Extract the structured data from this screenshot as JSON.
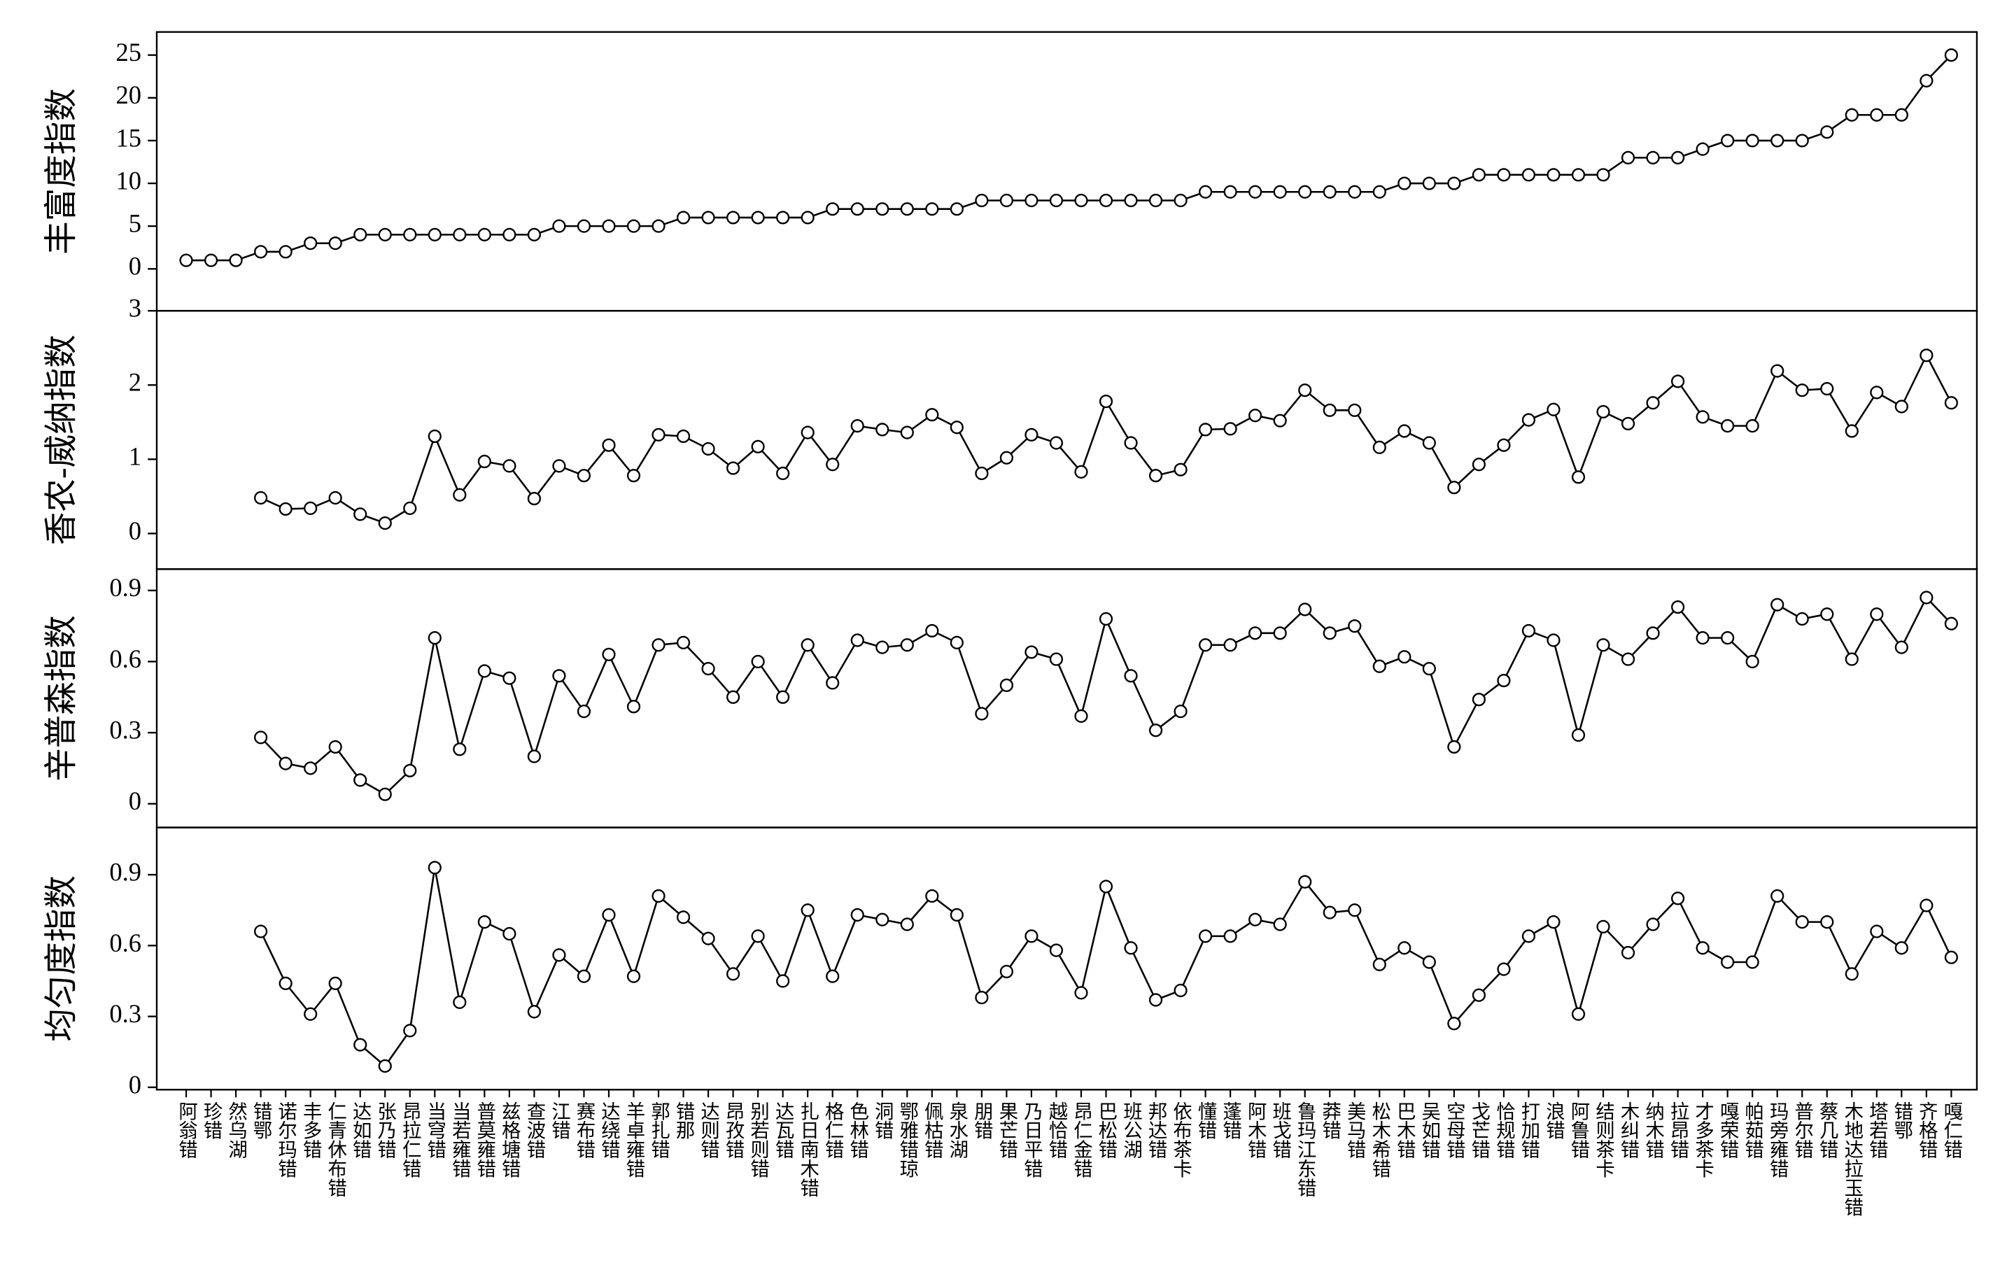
{
  "chart_data": [
    {
      "type": "line",
      "ylabel": "丰富度指数",
      "ylim": [
        -4.9,
        27.7
      ],
      "yticks": [
        0,
        5,
        10,
        15,
        20,
        25
      ],
      "values": [
        1,
        1,
        1,
        2,
        2,
        3,
        3,
        4,
        4,
        4,
        4,
        4,
        4,
        4,
        4,
        5,
        5,
        5,
        5,
        5,
        6,
        6,
        6,
        6,
        6,
        6,
        7,
        7,
        7,
        7,
        7,
        7,
        8,
        8,
        8,
        8,
        8,
        8,
        8,
        8,
        8,
        9,
        9,
        9,
        9,
        9,
        9,
        9,
        9,
        10,
        10,
        10,
        11,
        11,
        11,
        11,
        11,
        11,
        13,
        13,
        13,
        14,
        15,
        15,
        15,
        15,
        16,
        18,
        18,
        18,
        22,
        25
      ]
    },
    {
      "type": "line",
      "ylabel": "香农-威纳指数",
      "ylim": [
        -0.48,
        3
      ],
      "yticks": [
        0,
        1,
        2,
        3
      ],
      "values": [
        null,
        null,
        null,
        0.48,
        0.33,
        0.34,
        0.48,
        0.26,
        0.14,
        0.34,
        1.31,
        0.52,
        0.97,
        0.91,
        0.47,
        0.91,
        0.78,
        1.19,
        0.78,
        1.33,
        1.31,
        1.14,
        0.88,
        1.17,
        0.81,
        1.36,
        0.93,
        1.45,
        1.4,
        1.36,
        1.6,
        1.43,
        0.81,
        1.02,
        1.33,
        1.22,
        0.83,
        1.78,
        1.22,
        0.78,
        0.86,
        1.4,
        1.41,
        1.59,
        1.52,
        1.93,
        1.66,
        1.66,
        1.16,
        1.38,
        1.22,
        0.62,
        0.93,
        1.19,
        1.53,
        1.67,
        0.76,
        1.64,
        1.48,
        1.76,
        2.05,
        1.57,
        1.45,
        1.45,
        2.19,
        1.93,
        1.95,
        1.38,
        1.9,
        1.71,
        2.4,
        1.76
      ]
    },
    {
      "type": "line",
      "ylabel": "辛普森指数",
      "ylim": [
        -0.1,
        0.99
      ],
      "yticks": [
        0,
        0.3,
        0.6,
        0.9
      ],
      "values": [
        null,
        null,
        null,
        0.28,
        0.17,
        0.15,
        0.24,
        0.1,
        0.04,
        0.14,
        0.7,
        0.23,
        0.56,
        0.53,
        0.2,
        0.54,
        0.39,
        0.63,
        0.41,
        0.67,
        0.68,
        0.57,
        0.45,
        0.6,
        0.45,
        0.67,
        0.51,
        0.69,
        0.66,
        0.67,
        0.73,
        0.68,
        0.38,
        0.5,
        0.64,
        0.61,
        0.37,
        0.78,
        0.54,
        0.31,
        0.39,
        0.67,
        0.67,
        0.72,
        0.72,
        0.82,
        0.72,
        0.75,
        0.58,
        0.62,
        0.57,
        0.24,
        0.44,
        0.52,
        0.73,
        0.69,
        0.29,
        0.67,
        0.61,
        0.72,
        0.83,
        0.7,
        0.7,
        0.6,
        0.84,
        0.78,
        0.8,
        0.61,
        0.8,
        0.66,
        0.87,
        0.76
      ]
    },
    {
      "type": "line",
      "ylabel": "均匀度指数",
      "ylim": [
        -0.01,
        1.1
      ],
      "yticks": [
        0,
        0.3,
        0.6,
        0.9
      ],
      "categories": [
        "阿翁错",
        "珍错",
        "然乌湖",
        "错鄂",
        "诺尔玛错",
        "丰多错",
        "仁青休布错",
        "达如错",
        "张乃错",
        "昂拉仁错",
        "当穹错",
        "当若雍错",
        "普莫雍错",
        "兹格塘错",
        "查波错",
        "江错",
        "赛布错",
        "达绕错",
        "羊卓雍错",
        "郭扎错",
        "错那",
        "达则错",
        "昂孜错",
        "别若则错",
        "达瓦错",
        "扎日南木错",
        "格仁错",
        "色林错",
        "洞错",
        "鄂雅错琼",
        "佩枯错",
        "泉水湖",
        "朋错",
        "果芒错",
        "乃日平错",
        "越恰错",
        "昂仁金错",
        "巴松错",
        "班公湖",
        "邦达错",
        "依布茶卡",
        "懂错",
        "蓬错",
        "阿木错",
        "班戈错",
        "鲁玛江东错",
        "莽错",
        "美马错",
        "松木希错",
        "巴木错",
        "吴如错",
        "空母错",
        "戈芒错",
        "恰规错",
        "打加错",
        "浪错",
        "阿鲁错",
        "结则茶卡",
        "木纠错",
        "纳木错",
        "拉昂错",
        "才多茶卡",
        "嘎荣错",
        "帕茹错",
        "玛旁雍错",
        "普尔错",
        "蔡几错",
        "木地达拉玉错",
        "塔若错",
        "错鄂",
        "齐格错",
        "嘎仁错"
      ],
      "values": [
        null,
        null,
        null,
        0.66,
        0.44,
        0.31,
        0.44,
        0.18,
        0.09,
        0.24,
        0.93,
        0.36,
        0.7,
        0.65,
        0.32,
        0.56,
        0.47,
        0.73,
        0.47,
        0.81,
        0.72,
        0.63,
        0.48,
        0.64,
        0.45,
        0.75,
        0.47,
        0.73,
        0.71,
        0.69,
        0.81,
        0.73,
        0.38,
        0.49,
        0.64,
        0.58,
        0.4,
        0.85,
        0.59,
        0.37,
        0.41,
        0.64,
        0.64,
        0.71,
        0.69,
        0.87,
        0.74,
        0.75,
        0.52,
        0.59,
        0.53,
        0.27,
        0.39,
        0.5,
        0.64,
        0.7,
        0.31,
        0.68,
        0.57,
        0.69,
        0.8,
        0.59,
        0.53,
        0.53,
        0.81,
        0.7,
        0.7,
        0.48,
        0.66,
        0.59,
        0.77,
        0.55
      ]
    }
  ]
}
